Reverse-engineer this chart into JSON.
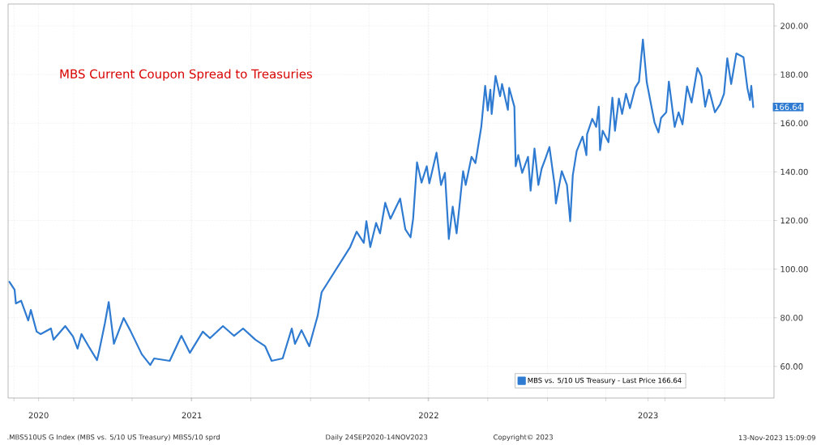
{
  "chart_data": {
    "type": "line",
    "title": "MBS Current Coupon Spread to Treasuries",
    "x": [
      "2020-09-24",
      "2020-10-02",
      "2020-10-04",
      "2020-10-12",
      "2020-10-23",
      "2020-10-27",
      "2020-11-05",
      "2020-11-11",
      "2020-11-27",
      "2020-12-01",
      "2020-12-19",
      "2020-12-31",
      "2021-01-07",
      "2021-01-13",
      "2021-01-24",
      "2021-02-06",
      "2021-02-09",
      "2021-02-18",
      "2021-02-24",
      "2021-03-04",
      "2021-03-19",
      "2021-03-29",
      "2021-04-16",
      "2021-04-29",
      "2021-05-05",
      "2021-05-29",
      "2021-06-16",
      "2021-06-29",
      "2021-07-19",
      "2021-07-30",
      "2021-08-19",
      "2021-09-05",
      "2021-09-19",
      "2021-10-08",
      "2021-10-23",
      "2021-11-02",
      "2021-11-19",
      "2021-12-03",
      "2021-12-08",
      "2021-12-18",
      "2021-12-30",
      "2022-01-12",
      "2022-01-18",
      "2022-03-03",
      "2022-03-13",
      "2022-03-24",
      "2022-03-28",
      "2022-04-03",
      "2022-04-12",
      "2022-04-18",
      "2022-04-26",
      "2022-05-04",
      "2022-05-19",
      "2022-05-27",
      "2022-06-04",
      "2022-06-08",
      "2022-06-14",
      "2022-06-21",
      "2022-06-29",
      "2022-07-03",
      "2022-07-14",
      "2022-07-21",
      "2022-07-27",
      "2022-08-02",
      "2022-08-08",
      "2022-08-14",
      "2022-08-24",
      "2022-08-28",
      "2022-09-06",
      "2022-09-12",
      "2022-09-21",
      "2022-09-27",
      "2022-10-01",
      "2022-10-05",
      "2022-10-07",
      "2022-10-13",
      "2022-10-20",
      "2022-10-23",
      "2022-11-01",
      "2022-11-03",
      "2022-11-11",
      "2022-11-13",
      "2022-11-17",
      "2022-11-23",
      "2022-12-02",
      "2022-12-06",
      "2022-12-12",
      "2022-12-18",
      "2022-12-23",
      "2022-12-29",
      "2023-01-04",
      "2023-01-12",
      "2023-01-14",
      "2023-01-23",
      "2023-01-31",
      "2023-02-05",
      "2023-02-09",
      "2023-02-15",
      "2023-02-24",
      "2023-03-02",
      "2023-03-03",
      "2023-03-11",
      "2023-03-17",
      "2023-03-21",
      "2023-03-23",
      "2023-03-27",
      "2023-04-05",
      "2023-04-11",
      "2023-04-15",
      "2023-04-21",
      "2023-04-26",
      "2023-05-02",
      "2023-05-08",
      "2023-05-16",
      "2023-05-22",
      "2023-05-28",
      "2023-06-03",
      "2023-06-15",
      "2023-06-21",
      "2023-06-25",
      "2023-07-03",
      "2023-07-07",
      "2023-07-16",
      "2023-07-22",
      "2023-07-28",
      "2023-08-04",
      "2023-08-11",
      "2023-08-20",
      "2023-08-26",
      "2023-09-01",
      "2023-09-07",
      "2023-09-16",
      "2023-09-24",
      "2023-09-30",
      "2023-10-05",
      "2023-10-11",
      "2023-10-19",
      "2023-10-30",
      "2023-11-05",
      "2023-11-09",
      "2023-11-11",
      "2023-11-14"
    ],
    "series": [
      {
        "name": "MBS vs. 5/10 US Treasury - Last Price 166.64",
        "color": "#2f7bd2",
        "values": [
          94.8,
          91.5,
          85.9,
          87,
          78.9,
          83.2,
          74.3,
          73.3,
          75.6,
          71,
          76.6,
          72.3,
          67.3,
          73.3,
          68.3,
          62.6,
          66,
          77.6,
          86.5,
          69.3,
          79.9,
          74.9,
          65,
          60.6,
          63.3,
          62.3,
          72.6,
          65.6,
          74.3,
          71.6,
          76.6,
          72.6,
          75.6,
          71,
          68.3,
          62.3,
          63.3,
          75.6,
          69.3,
          74.9,
          68.3,
          80.9,
          90.5,
          109.1,
          115.4,
          110.8,
          119.7,
          109.1,
          119,
          114.7,
          127.3,
          120.7,
          129,
          116.4,
          113.1,
          120.7,
          143.9,
          135.6,
          142.3,
          135.3,
          147.9,
          134.6,
          139.6,
          112.4,
          125.7,
          114.7,
          140.3,
          134.6,
          146.2,
          143.6,
          158.5,
          175.4,
          165.2,
          173.8,
          163.8,
          179.4,
          171.1,
          176.1,
          165.5,
          174.5,
          166.8,
          142.3,
          146.9,
          139.6,
          146.2,
          132.3,
          149.6,
          134.6,
          141.3,
          145.6,
          150.2,
          134.6,
          127,
          140.3,
          134.6,
          119.7,
          138.6,
          148.6,
          154.5,
          146.9,
          155.5,
          161.8,
          158.5,
          166.8,
          148.9,
          156.9,
          152.2,
          170.5,
          156.9,
          170.1,
          163.8,
          172.1,
          166.2,
          174.5,
          177.1,
          194.4,
          176.8,
          160.2,
          156.2,
          162.2,
          164.5,
          177.1,
          158.5,
          164.5,
          159.5,
          175.1,
          168.5,
          182.7,
          179.4,
          166.8,
          173.8,
          164.5,
          167.8,
          172.1,
          186.7,
          176.1,
          188.7,
          187.1,
          174.5,
          169.5,
          175.4,
          166.64
        ]
      }
    ],
    "xlim": [
      "2020-09-22",
      "2023-12-16"
    ],
    "xticks": [
      {
        "value": "2020-10-01",
        "label": null
      },
      {
        "value": "2020-11-08",
        "label": "2020"
      },
      {
        "value": "2021-01-01",
        "label": null
      },
      {
        "value": "2021-04-01",
        "label": null
      },
      {
        "value": "2021-07-02",
        "label": "2021"
      },
      {
        "value": "2021-07-01",
        "label": null
      },
      {
        "value": "2021-10-01",
        "label": null
      },
      {
        "value": "2022-01-01",
        "label": null
      },
      {
        "value": "2022-04-01",
        "label": null
      },
      {
        "value": "2022-07-02",
        "label": "2022"
      },
      {
        "value": "2022-07-01",
        "label": null
      },
      {
        "value": "2022-10-01",
        "label": null
      },
      {
        "value": "2023-01-01",
        "label": null
      },
      {
        "value": "2023-04-01",
        "label": null
      },
      {
        "value": "2023-06-05",
        "label": "2023"
      },
      {
        "value": "2023-07-01",
        "label": null
      },
      {
        "value": "2023-10-01",
        "label": null
      }
    ],
    "ylim": [
      47,
      209
    ],
    "yticks": [
      {
        "value": 60,
        "label": "60.00"
      },
      {
        "value": 80,
        "label": "80.00"
      },
      {
        "value": 100,
        "label": "100.00"
      },
      {
        "value": 120,
        "label": "120.00"
      },
      {
        "value": 140,
        "label": "140.00"
      },
      {
        "value": 160,
        "label": "160.00"
      },
      {
        "value": 180,
        "label": "180.00"
      },
      {
        "value": 200,
        "label": "200.00"
      }
    ],
    "grid": true,
    "legend": "bottom right",
    "marker": "none",
    "line_style": "solid",
    "annotations": [
      {
        "text": "166.64",
        "x": "2023-11-14",
        "y": 166.64
      },
      ".MBS510US G Index (MBS vs. 5/10 US Treasury) MBS5/10 sprd",
      "Daily 24SEP2020-14NOV2023",
      "Copyright© 2023",
      "13-Nov-2023 15:09:09"
    ]
  }
}
